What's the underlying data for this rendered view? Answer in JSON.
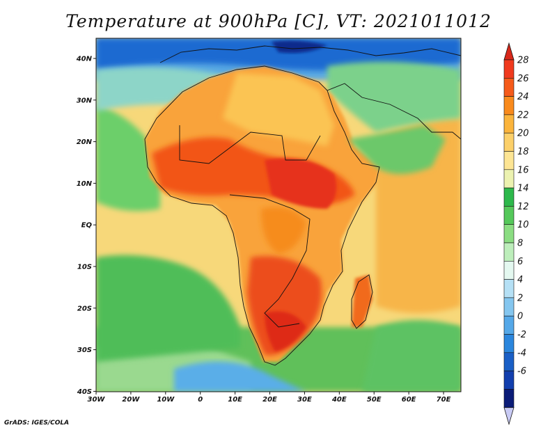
{
  "title": "Temperature at 900hPa [C], VT: 2021011012",
  "credit": "GrADS: IGES/COLA",
  "map": {
    "lon_ticks": [
      "30W",
      "20W",
      "10W",
      "0",
      "10E",
      "20E",
      "30E",
      "40E",
      "50E",
      "60E",
      "70E"
    ],
    "lat_ticks": [
      "40N",
      "30N",
      "20N",
      "10N",
      "EQ",
      "10S",
      "20S",
      "30S",
      "40S"
    ]
  },
  "colorbar": {
    "levels": [
      "28",
      "26",
      "24",
      "22",
      "20",
      "18",
      "16",
      "14",
      "12",
      "10",
      "8",
      "6",
      "4",
      "2",
      "0",
      "-2",
      "-4",
      "-6"
    ],
    "colors": [
      "#f03a1e",
      "#f55a1a",
      "#f98a1c",
      "#fbb43c",
      "#fcd06a",
      "#fde594",
      "#ecf2b0",
      "#2db84b",
      "#55c85a",
      "#8bdd82",
      "#bdeebb",
      "#e4f8f0",
      "#b5e0f5",
      "#84c6ef",
      "#55a8e8",
      "#2b86dd",
      "#1a5fc6",
      "#123fae",
      "#0b1c78"
    ],
    "top_color": "#d8281a",
    "bottom_color": "#c9cbf5"
  }
}
